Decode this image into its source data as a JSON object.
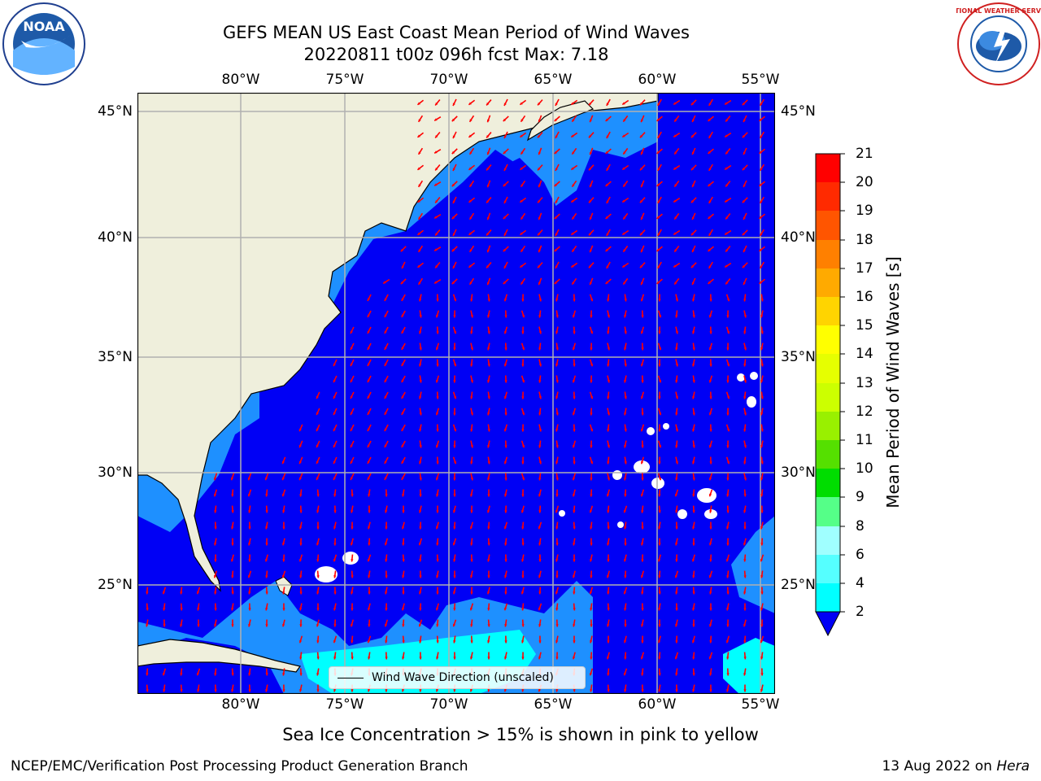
{
  "title": {
    "line1": "GEFS MEAN US East Coast Mean Period of Wind Waves",
    "line2": "20220811 t00z 096h fcst   Max: 7.18"
  },
  "map": {
    "lon_labels": [
      "80°W",
      "75°W",
      "70°W",
      "65°W",
      "60°W",
      "55°W"
    ],
    "lat_labels": [
      "45°N",
      "40°N",
      "35°N",
      "30°N",
      "25°N"
    ],
    "colors": {
      "land": "#efefdc",
      "ocean_2_4": "#1e90ff",
      "ocean_below_2": "#0000f5",
      "ocean_4_6": "#00ffff",
      "missing": "#ffffff",
      "arrow": "#ff0000",
      "grid": "#b0b0b0"
    }
  },
  "legend": {
    "label": "Wind Wave Direction (unscaled)"
  },
  "colorbar": {
    "title": "Mean Period of Wind Waves [s]",
    "ticks": [
      "21",
      "20",
      "19",
      "18",
      "17",
      "16",
      "15",
      "14",
      "13",
      "12",
      "11",
      "10",
      "9",
      "8",
      "6",
      "4",
      "2"
    ],
    "colors": [
      "#ff0000",
      "#ff2a00",
      "#ff5500",
      "#ff8000",
      "#ffaa00",
      "#ffd400",
      "#ffff00",
      "#e6ff00",
      "#ccff00",
      "#99f000",
      "#55e000",
      "#00dd00",
      "#55ff88",
      "#a0ffff",
      "#55ffff",
      "#00ffff",
      "#1e90ff"
    ],
    "under_color": "#0000f5"
  },
  "note": "Sea Ice Concentration > 15% is shown in pink to yellow",
  "footer": {
    "left": "NCEP/EMC/Verification Post Processing Product Generation Branch",
    "right_date": "13 Aug 2022 on ",
    "right_host": "Hera"
  },
  "logos": {
    "noaa": "NOAA",
    "nws": "NATIONAL WEATHER SERVICE"
  }
}
